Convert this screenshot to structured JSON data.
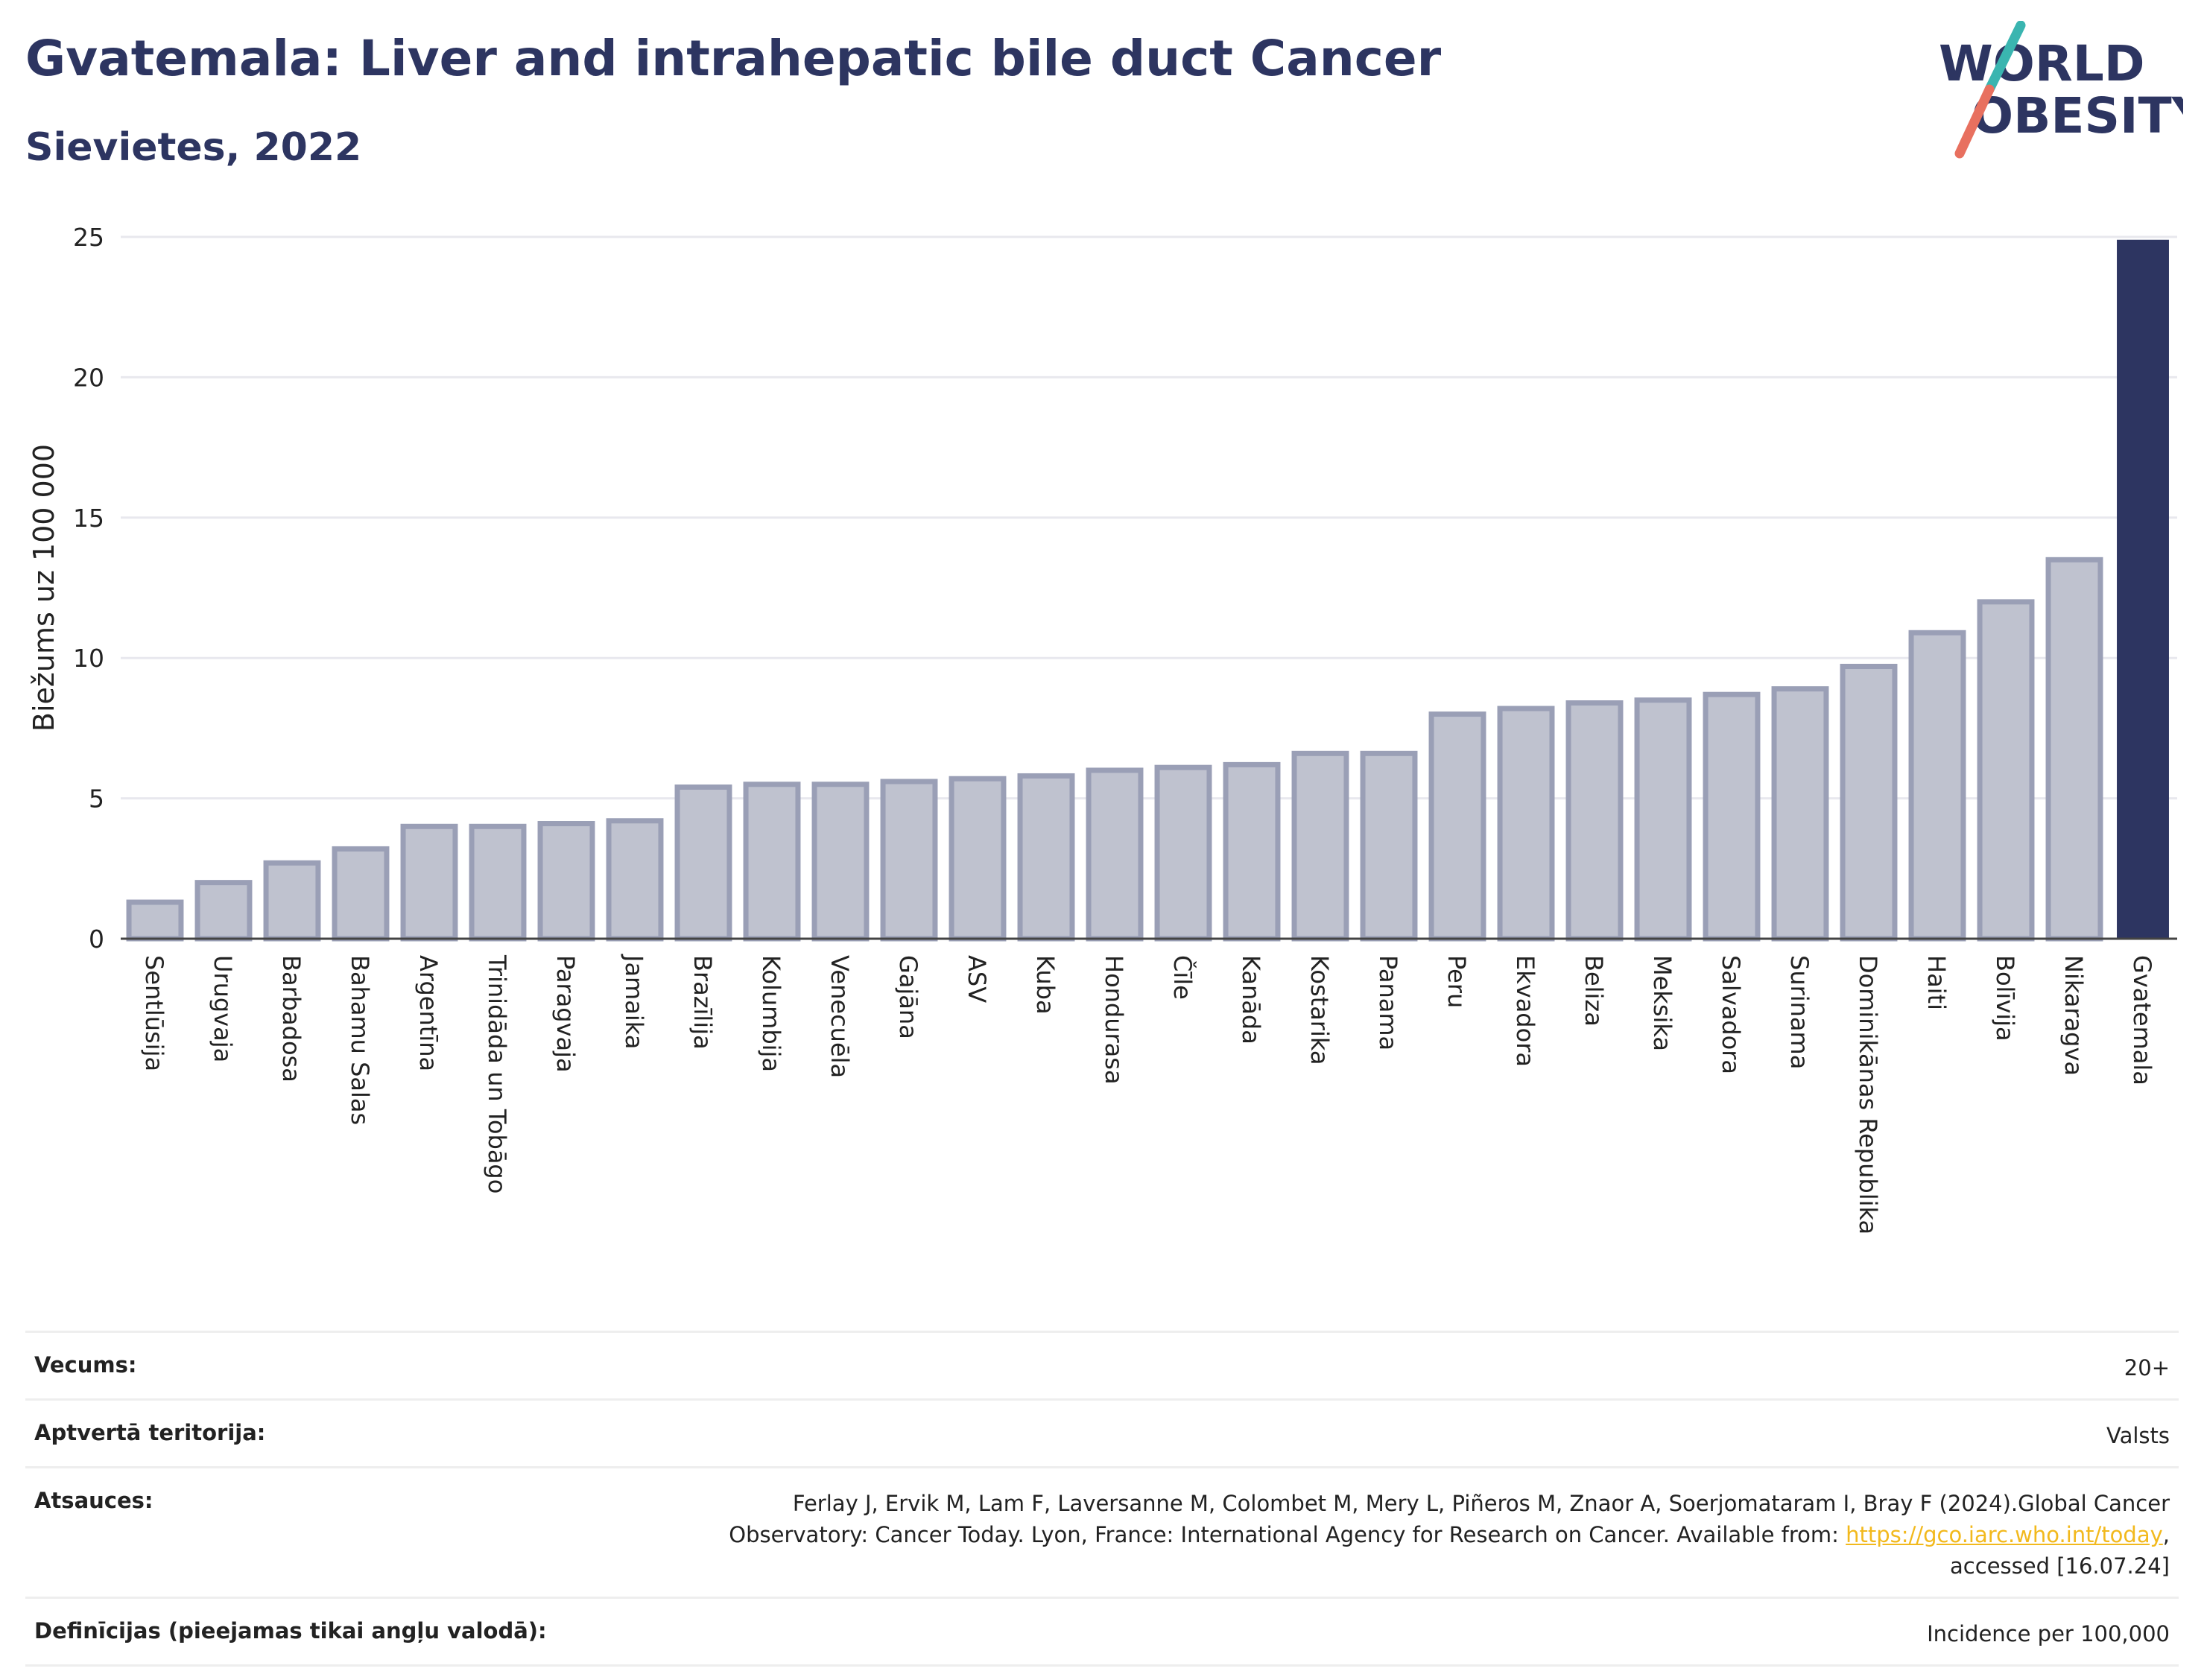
{
  "header": {
    "title": "Gvatemala: Liver and intrahepatic bile duct Cancer",
    "subtitle": "Sievietes, 2022"
  },
  "logo": {
    "line1": "WORLD",
    "line2": "OBESITY",
    "accent_teal": "#3ab5b0",
    "accent_coral": "#e8705f",
    "text_color": "#2d3561"
  },
  "chart_data": {
    "type": "bar",
    "title": "Gvatemala: Liver and intrahepatic bile duct Cancer",
    "subtitle": "Sievietes, 2022",
    "ylabel": "Biežums uz 100 000",
    "xlabel": "",
    "ylim": [
      0,
      25
    ],
    "yticks": [
      0,
      5,
      10,
      15,
      20,
      25
    ],
    "grid": true,
    "categories": [
      "Sentlūsija",
      "Urugvaja",
      "Barbadosa",
      "Bahamu Salas",
      "Argentīna",
      "Trinidāda un Tobāgo",
      "Paragvaja",
      "Jamaika",
      "Brazīlija",
      "Kolumbija",
      "Venecuēla",
      "Gajāna",
      "ASV",
      "Kuba",
      "Hondurasa",
      "Čīle",
      "Kanāda",
      "Kostarika",
      "Panama",
      "Peru",
      "Ekvadora",
      "Beliza",
      "Meksika",
      "Salvadora",
      "Surinama",
      "Dominikānas Republika",
      "Haiti",
      "Bolīvija",
      "Nikaragva",
      "Gvatemala"
    ],
    "values": [
      1.3,
      2.0,
      2.7,
      3.2,
      4.0,
      4.0,
      4.1,
      4.2,
      5.4,
      5.5,
      5.5,
      5.6,
      5.7,
      5.8,
      6.0,
      6.1,
      6.2,
      6.6,
      6.6,
      8.0,
      8.2,
      8.4,
      8.5,
      8.7,
      8.9,
      9.7,
      10.9,
      12.0,
      13.5,
      24.9
    ],
    "highlight": "Gvatemala",
    "colors": {
      "bar": "#bfc2cf",
      "bar_border": "#9a9fb6",
      "highlight": "#2d3561",
      "grid": "#e8e8ee"
    }
  },
  "info": {
    "rows": [
      {
        "label": "Vecums:",
        "value": "20+"
      },
      {
        "label": "Aptvertā teritorija:",
        "value": "Valsts"
      },
      {
        "label": "Atsauces:",
        "value_line1": "Ferlay J, Ervik M, Lam F, Laversanne M, Colombet M, Mery L, Piñeros M, Znaor A, Soerjomataram I, Bray F (2024).Global Cancer",
        "value_line2_prefix": "Observatory: Cancer Today. Lyon, France: International Agency for Research on Cancer. Available from: ",
        "link_text": "https://gco.iarc.who.int/today",
        "value_line2_suffix": ",",
        "value_line3": "accessed [16.07.24]"
      },
      {
        "label": "Definīcijas (pieejamas tikai angļu valodā):",
        "value": "Incidence per 100,000"
      }
    ]
  }
}
